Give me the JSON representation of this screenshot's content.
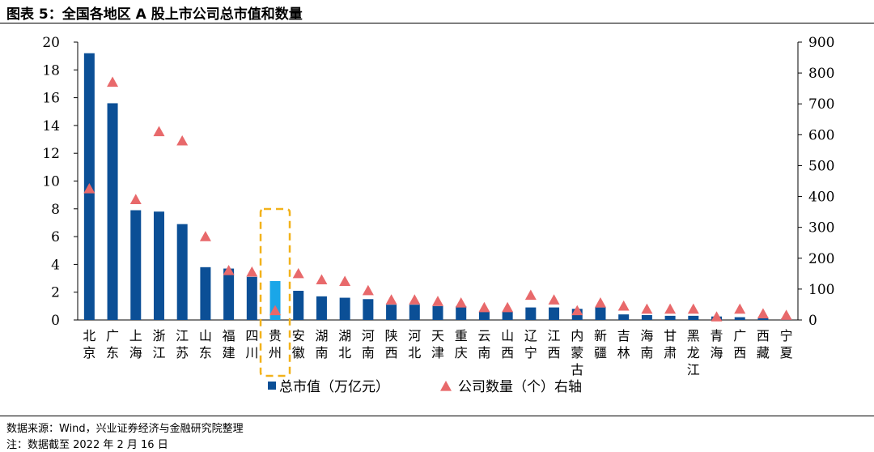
{
  "title": "图表 5：全国各地区 A 股上市公司总市值和数量",
  "footnotes": {
    "source": "数据来源：Wind，兴业证券经济与金融研究院整理",
    "note": "注：数据截至 2022 年 2 月 16 日"
  },
  "colors": {
    "bar": "#0b4f96",
    "bar_highlight": "#1aa6e8",
    "marker": "#e8696b",
    "highlight_box": "#f2b21b"
  },
  "chart_data": {
    "type": "bar",
    "categories": [
      "北京",
      "广东",
      "上海",
      "浙江",
      "江苏",
      "山东",
      "福建",
      "四川",
      "贵州",
      "安徽",
      "湖南",
      "湖北",
      "河南",
      "陕西",
      "河北",
      "天津",
      "重庆",
      "云南",
      "山西",
      "辽宁",
      "江西",
      "内蒙古",
      "新疆",
      "吉林",
      "海南",
      "甘肃",
      "黑龙江",
      "青海",
      "广西",
      "西藏",
      "宁夏"
    ],
    "highlight_category": "贵州",
    "series": [
      {
        "name": "总市值（万亿元）",
        "type": "bar",
        "axis": "left",
        "values": [
          19.2,
          15.6,
          7.9,
          7.8,
          6.9,
          3.8,
          3.7,
          3.1,
          2.8,
          2.1,
          1.7,
          1.6,
          1.5,
          1.1,
          1.1,
          1.0,
          1.0,
          0.6,
          0.6,
          0.9,
          0.9,
          0.8,
          0.9,
          0.4,
          0.35,
          0.3,
          0.3,
          0.25,
          0.2,
          0.15,
          0.1
        ]
      },
      {
        "name": "公司数量（个）右轴",
        "type": "scatter",
        "marker": "triangle",
        "axis": "right",
        "values": [
          425,
          770,
          390,
          610,
          580,
          270,
          160,
          155,
          30,
          150,
          130,
          125,
          95,
          65,
          65,
          60,
          55,
          40,
          40,
          80,
          65,
          30,
          55,
          45,
          35,
          35,
          35,
          10,
          35,
          20,
          15
        ]
      }
    ],
    "y_left": {
      "min": 0,
      "max": 20,
      "ticks": [
        0,
        2,
        4,
        6,
        8,
        10,
        12,
        14,
        16,
        18,
        20
      ]
    },
    "y_right": {
      "min": 0,
      "max": 900,
      "ticks": [
        0,
        100,
        200,
        300,
        400,
        500,
        600,
        700,
        800,
        900
      ]
    },
    "legend": {
      "placement": "bottom-center",
      "bar_label": "总市值（万亿元）",
      "marker_label": "公司数量（个）右轴"
    },
    "grid": false
  }
}
